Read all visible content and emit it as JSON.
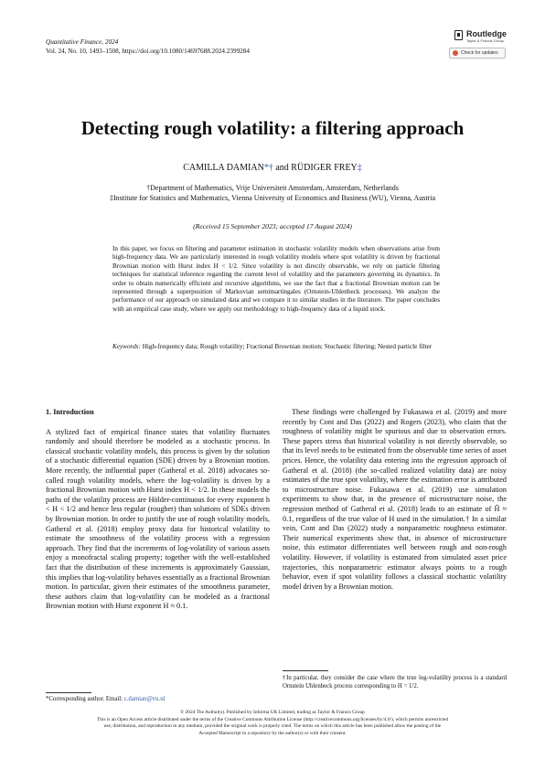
{
  "header": {
    "journal": "Quantitative Finance, 2024",
    "citation": "Vol. 24, No. 10, 1493–1508, https://doi.org/10.1080/14697688.2024.2399284"
  },
  "publisher": {
    "name": "Routledge",
    "group": "Taylor & Francis Group",
    "check_label": "Check for updates"
  },
  "title": "Detecting rough volatility: a filtering approach",
  "authors": {
    "author1": "CAMILLA DAMIAN",
    "author1_marks": "*†",
    "joiner": " and ",
    "author2": "RÜDIGER FREY",
    "author2_marks": "‡"
  },
  "affiliations": [
    "†Department of Mathematics, Vrije Universiteit Amsterdam, Amsterdam, Netherlands",
    "‡Institute for Statistics and Mathematics, Vienna University of Economics and Business (WU), Vienna, Austria"
  ],
  "received": "(Received 15 September 2023; accepted 17 August 2024)",
  "abstract": "In this paper, we focus on filtering and parameter estimation in stochastic volatility models when observations arise from high-frequency data. We are particularly interested in rough volatility models where spot volatility is driven by fractional Brownian motion with Hurst index H < 1/2. Since volatility is not directly observable, we rely on particle filtering techniques for statistical inference regarding the current level of volatility and the parameters governing its dynamics. In order to obtain numerically efficient and recursive algorithms, we use the fact that a fractional Brownian motion can be represented through a superposition of Markovian semimartingales (Ornstein-Uhlenbeck processes). We analyze the performance of our approach on simulated data and we compare it to similar studies in the literature. The paper concludes with an empirical case study, where we apply our methodology to high-frequency data of a liquid stock.",
  "keywords": {
    "label": "Keywords:",
    "text": "High-frequency data; Rough volatility; Fractional Brownian motion; Stochastic filtering; Nested particle filter"
  },
  "section": {
    "heading": "1.  Introduction",
    "left_par": "A stylized fact of empirical finance states that volatility fluctuates randomly and should therefore be modeled as a stochastic process. In classical stochastic volatility models, this process is given by the solution of a stochastic differential equation (SDE) driven by a Brownian motion. More recently, the influential paper (Gatheral et al. 2018) advocates so-called rough volatility models, where the log-volatility is driven by a fractional Brownian motion with Hurst index H < 1/2. In these models the paths of the volatility process are Hölder-continuous for every exponent h < H < 1/2 and hence less regular (rougher) than solutions of SDEs driven by Brownian motion. In order to justify the use of rough volatility models, Gatheral et al. (2018) employ proxy data for historical volatility to estimate the smoothness of the volatility process with a regression approach. They find that the increments of log-volatility of various assets enjoy a monofractal scaling property; together with the well-established fact that the distribution of these increments is approximately Gaussian, this implies that log-volatility behaves essentially as a fractional Brownian motion. In particular, given their estimates of the smoothness parameter, these authors claim that log-volatility can be modeled as a fractional Brownian motion with Hurst exponent H ≈ 0.1.",
    "right_par": "These findings were challenged by Fukasawa et al. (2019) and more recently by Cont and Das (2022) and Rogers (2023), who claim that the roughness of volatility might be spurious and due to observation errors. These papers stress that historical volatility is not directly observable, so that its level needs to be estimated from the observable time series of asset prices. Hence, the volatility data entering into the regression approach of Gatheral et al. (2018) (the so-called realized volatility data) are noisy estimates of the true spot volatility, where the estimation error is attributed to microstructure noise. Fukasawa et al. (2019) use simulation experiments to show that, in the presence of microstructure noise, the regression method of Gatheral et al. (2018) leads to an estimate of Ĥ ≈ 0.1, regardless of the true value of H used in the simulation.† In a similar vein, Cont and Das (2022) study a nonparametric roughness estimator. Their numerical experiments show that, in absence of microstructure noise, this estimator differentiates well between rough and non-rough volatility. However, if volatility is estimated from simulated asset price trajectories, this nonparametric estimator always points to a rough behavior, even if spot volatility follows a classical stochastic volatility model driven by a Brownian motion."
  },
  "footnotes": {
    "corresponding_label": "*Corresponding author. Email: ",
    "corresponding_email": "c.damian@vu.nl",
    "dagger_note": "†In particular, they consider the case where the true log-volatility process is a standard Ornstein Uhlenbeck process corresponding to H = 1/2."
  },
  "footer": {
    "copyright": "© 2024 The Author(s). Published by Informa UK Limited, trading as Taylor & Francis Group",
    "license_line1": "This is an Open Access article distributed under the terms of the Creative Commons Attribution License (http://creativecommons.org/licenses/by/4.0/), which permits unrestricted",
    "license_line2": "use, distribution, and reproduction in any medium, provided the original work is properly cited. The terms on which this article has been published allow the posting of the",
    "license_line3": "Accepted Manuscript in a repository by the author(s) or with their consent."
  }
}
